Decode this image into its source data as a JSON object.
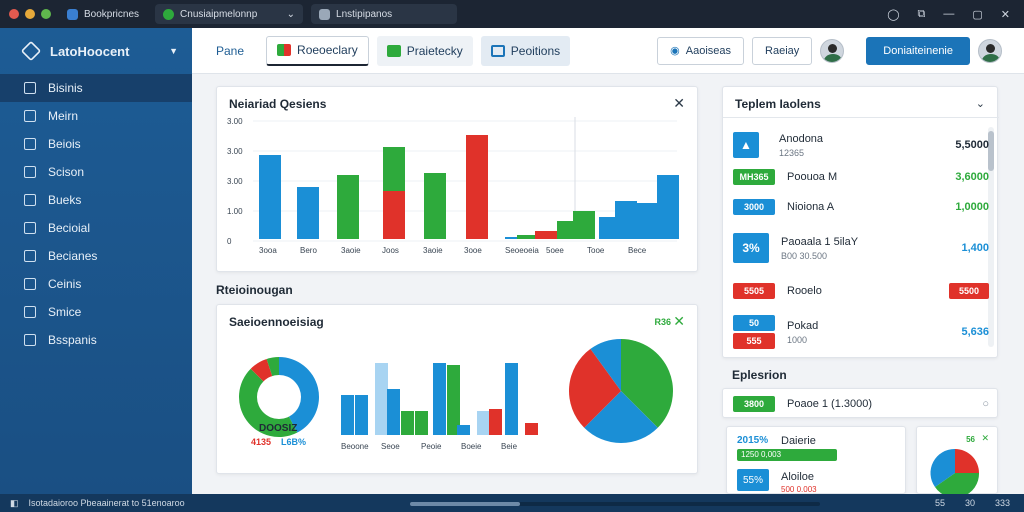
{
  "browser": {
    "tab1": "Bookpricnes",
    "tab2": "Cnusiaipmelonnp",
    "tab3": "Lnstipipanos"
  },
  "sidebar": {
    "brand": "LatoHoocent",
    "items": [
      {
        "label": "Bisinis",
        "icon": "document-icon"
      },
      {
        "label": "Meirn",
        "icon": "list-icon"
      },
      {
        "label": "Beiois",
        "icon": "page-icon"
      },
      {
        "label": "Scison",
        "icon": "search-icon"
      },
      {
        "label": "Bueks",
        "icon": "grid-icon"
      },
      {
        "label": "Becioial",
        "icon": "clock-icon"
      },
      {
        "label": "Becianes",
        "icon": "monitor-icon"
      },
      {
        "label": "Ceinis",
        "icon": "doc-icon"
      },
      {
        "label": "Smice",
        "icon": "globe-icon"
      },
      {
        "label": "Bsspanis",
        "icon": "chat-icon"
      }
    ]
  },
  "topbar": {
    "tab_plain": "Pane",
    "tab_active": "Roeoeclary",
    "tab_soft": "Praietecky",
    "tab_soft2": "Peoitions",
    "btn1": "Aaoiseas",
    "btn2": "Raeiay",
    "btn3": "Doniaiteinenie"
  },
  "main_chart": {
    "title": "Neiariad Qesiens",
    "yticks": [
      "3.00",
      "3.00",
      "3.00",
      "1.00",
      "0"
    ],
    "labels": [
      "3ooa",
      "Bero",
      "3aoie",
      "Joos",
      "3aoie",
      "3ooe",
      "Seoeoeia",
      "5oee",
      "Tooe",
      "Bece"
    ]
  },
  "section2": "Rteioinougan",
  "bottom_card": {
    "title": "Saeioennoeisiag",
    "badge": "R36",
    "donut_label": "DOOSIZ",
    "donut_pct1": "4135",
    "donut_pct2": "L6B%",
    "bar_labels": [
      "Beoone",
      "Seoe",
      "Peoie",
      "Boeie",
      "Beie"
    ]
  },
  "right_panel": {
    "title": "Teplem Iaolens",
    "rows": [
      {
        "name": "Anodona",
        "sub": "12365",
        "value": "5,5000"
      },
      {
        "pill": "MH365",
        "name": "Poouoa M",
        "value": "3,6000"
      },
      {
        "pill": "3000",
        "name": "Nioiona A",
        "value": "1,0000"
      },
      {
        "pill": "3%",
        "name": "Paoaala 1 5ilaY",
        "sub": "B00 30.500",
        "value": "1,400"
      },
      {
        "pill": "5505",
        "name": "Rooelo",
        "value": "5500"
      },
      {
        "pill": "50",
        "pill2": "555",
        "name": "Pokad",
        "sub": "1000",
        "value": "5,636"
      }
    ],
    "section": "Eplesrion",
    "section_row": {
      "pill": "3800",
      "name": "Poaoe 1 (1.3000)"
    },
    "mini": {
      "pct": "2015%",
      "name": "Daierie",
      "sub": "1250 0,003",
      "pct2": "55%",
      "name2": "Aloiloe",
      "sub2": "500 0.003",
      "badge": "56"
    }
  },
  "statusbar": {
    "left": "Isotadaioroo Pbeaainerat to 51enoaroo",
    "right": [
      "55",
      "30",
      "333"
    ]
  },
  "colors": {
    "blue": "#1b8fd6",
    "green": "#2eaa3c",
    "red": "#e0322a",
    "sidebar": "#1d5c95"
  }
}
